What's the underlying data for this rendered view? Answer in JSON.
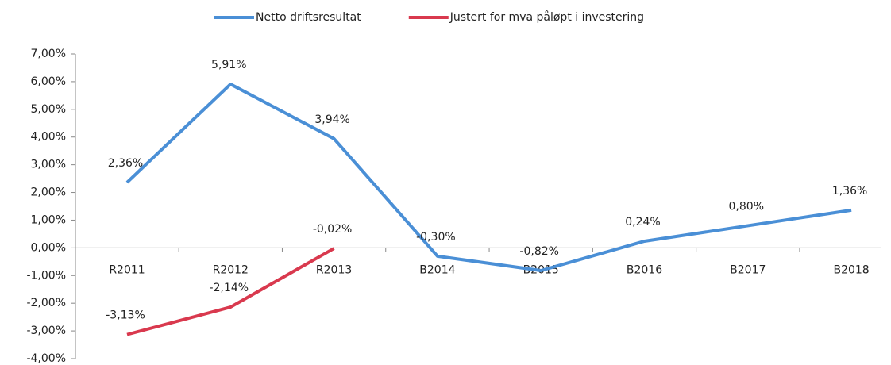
{
  "chart_data": {
    "type": "line",
    "categories": [
      "R2011",
      "R2012",
      "R2013",
      "B2014",
      "B2015",
      "B2016",
      "B2017",
      "B2018"
    ],
    "series": [
      {
        "name": "Netto driftsresultat",
        "color": "#4a8fd6",
        "values": [
          2.36,
          5.91,
          3.94,
          -0.3,
          -0.82,
          0.24,
          0.8,
          1.36
        ],
        "value_labels": [
          "2,36%",
          "5,91%",
          "3,94%",
          "-0,30%",
          "-0,82%",
          "0,24%",
          "0,80%",
          "1,36%"
        ]
      },
      {
        "name": "Justert for mva påløpt i investering",
        "color": "#d9394e",
        "values": [
          -3.13,
          -2.14,
          -0.02,
          null,
          null,
          null,
          null,
          null
        ],
        "value_labels": [
          "-3,13%",
          "-2,14%",
          "-0,02%",
          null,
          null,
          null,
          null,
          null
        ]
      }
    ],
    "ylim": [
      -4,
      7
    ],
    "yticks": [
      {
        "value": -4,
        "label": "-4,00%"
      },
      {
        "value": -3,
        "label": "-3,00%"
      },
      {
        "value": -2,
        "label": "-2,00%"
      },
      {
        "value": -1,
        "label": "-1,00%"
      },
      {
        "value": 0,
        "label": "0,00%"
      },
      {
        "value": 1,
        "label": "1,00%"
      },
      {
        "value": 2,
        "label": "2,00%"
      },
      {
        "value": 3,
        "label": "3,00%"
      },
      {
        "value": 4,
        "label": "4,00%"
      },
      {
        "value": 5,
        "label": "5,00%"
      },
      {
        "value": 6,
        "label": "6,00%"
      },
      {
        "value": 7,
        "label": "7,00%"
      }
    ],
    "legend": "top",
    "grid": false
  }
}
